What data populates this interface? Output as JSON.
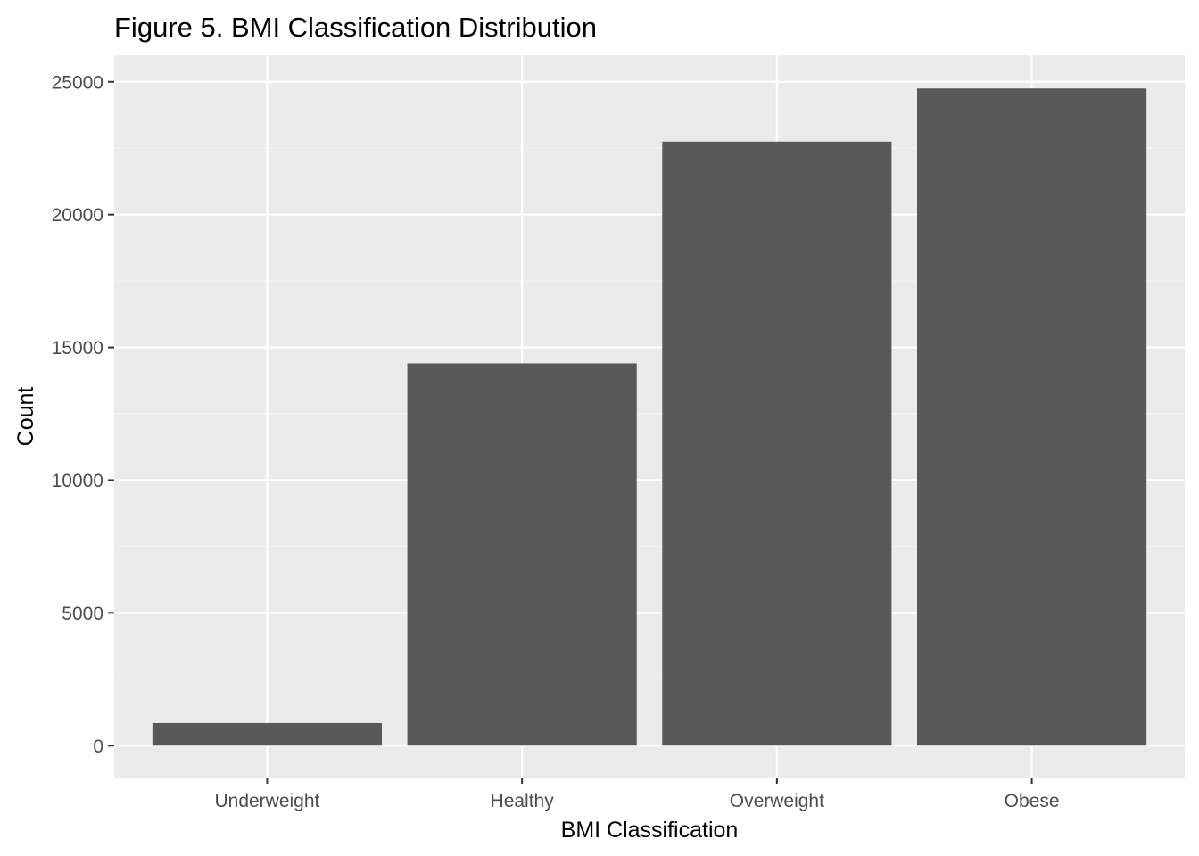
{
  "chart_data": {
    "type": "bar",
    "title": "Figure 5. BMI Classification Distribution",
    "xlabel": "BMI Classification",
    "ylabel": "Count",
    "categories": [
      "Underweight",
      "Healthy",
      "Overweight",
      "Obese"
    ],
    "values": [
      850,
      14400,
      22750,
      24750
    ],
    "ylim": [
      -1200,
      26000
    ],
    "yticks": [
      0,
      5000,
      10000,
      15000,
      20000,
      25000
    ],
    "ytick_labels": [
      "0",
      "5000",
      "10000",
      "15000",
      "20000",
      "25000"
    ],
    "grid": true,
    "legend": "none",
    "colors": {
      "bar": "#595959",
      "panel_background": "#ebebeb",
      "grid_major": "#ffffff",
      "grid_minor": "#f5f5f5",
      "tick_text": "#4d4d4d",
      "tick_mark": "#333333"
    }
  }
}
